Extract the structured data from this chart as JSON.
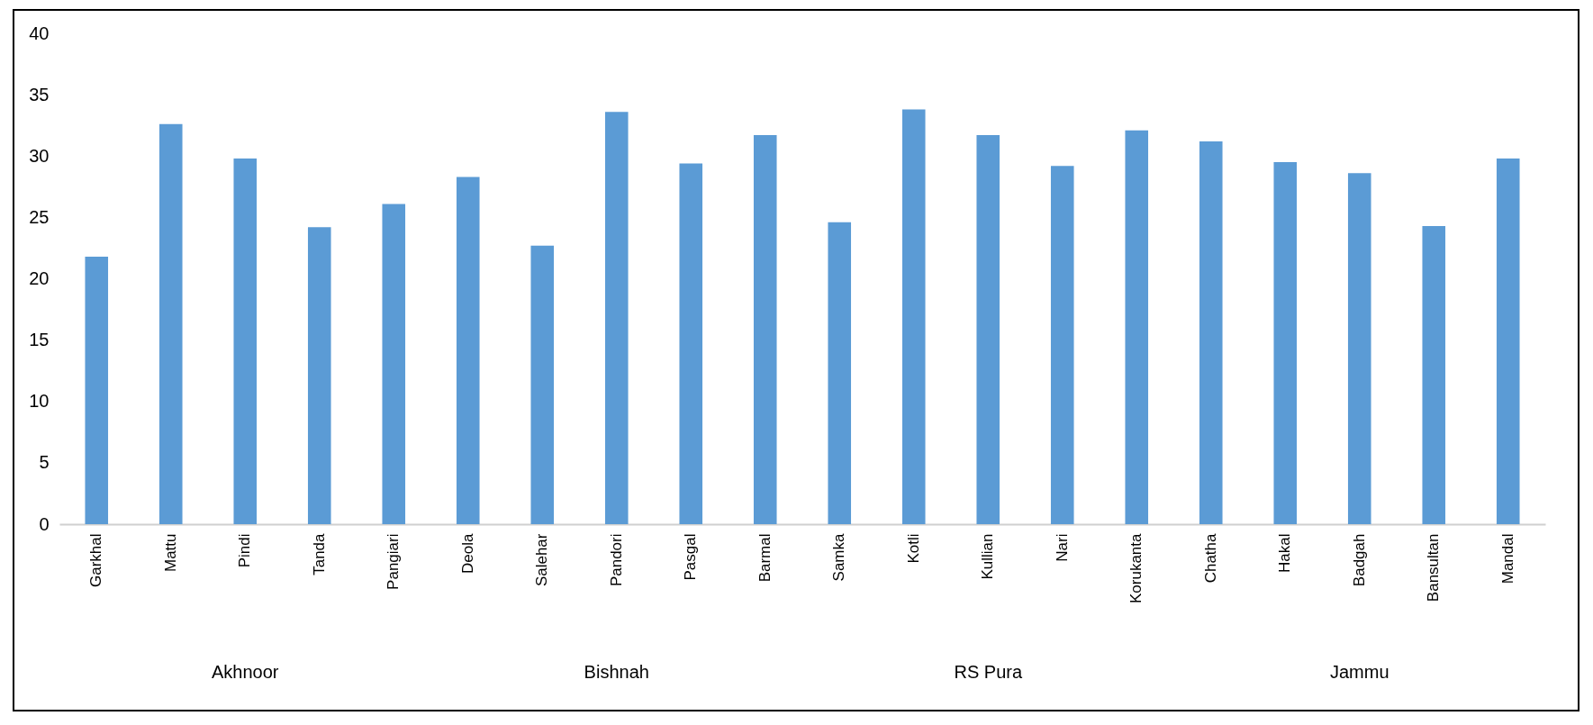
{
  "chart_data": {
    "type": "bar",
    "categories": [
      "Garkhal",
      "Mattu",
      "Pindi",
      "Tanda",
      "Pangiari",
      "Deola",
      "Salehar",
      "Pandori",
      "Pasgal",
      "Barmal",
      "Samka",
      "Kotli",
      "Kullian",
      "Nari",
      "Korukanta",
      "Chatha",
      "Hakal",
      "Badgah",
      "Bansultan",
      "Mandal"
    ],
    "values": [
      21.8,
      32.6,
      29.8,
      24.2,
      26.1,
      28.3,
      22.7,
      33.6,
      29.4,
      31.7,
      24.6,
      33.8,
      31.7,
      29.2,
      32.1,
      31.2,
      29.5,
      28.6,
      24.3,
      29.8
    ],
    "color": "#5b9bd5",
    "ylim": [
      0,
      40
    ],
    "yticks": [
      0,
      5,
      10,
      15,
      20,
      25,
      30,
      35,
      40
    ],
    "annotations": [
      "Akhnoor",
      "Bishnah",
      "RS Pura",
      "Jammu"
    ],
    "grid": false
  }
}
